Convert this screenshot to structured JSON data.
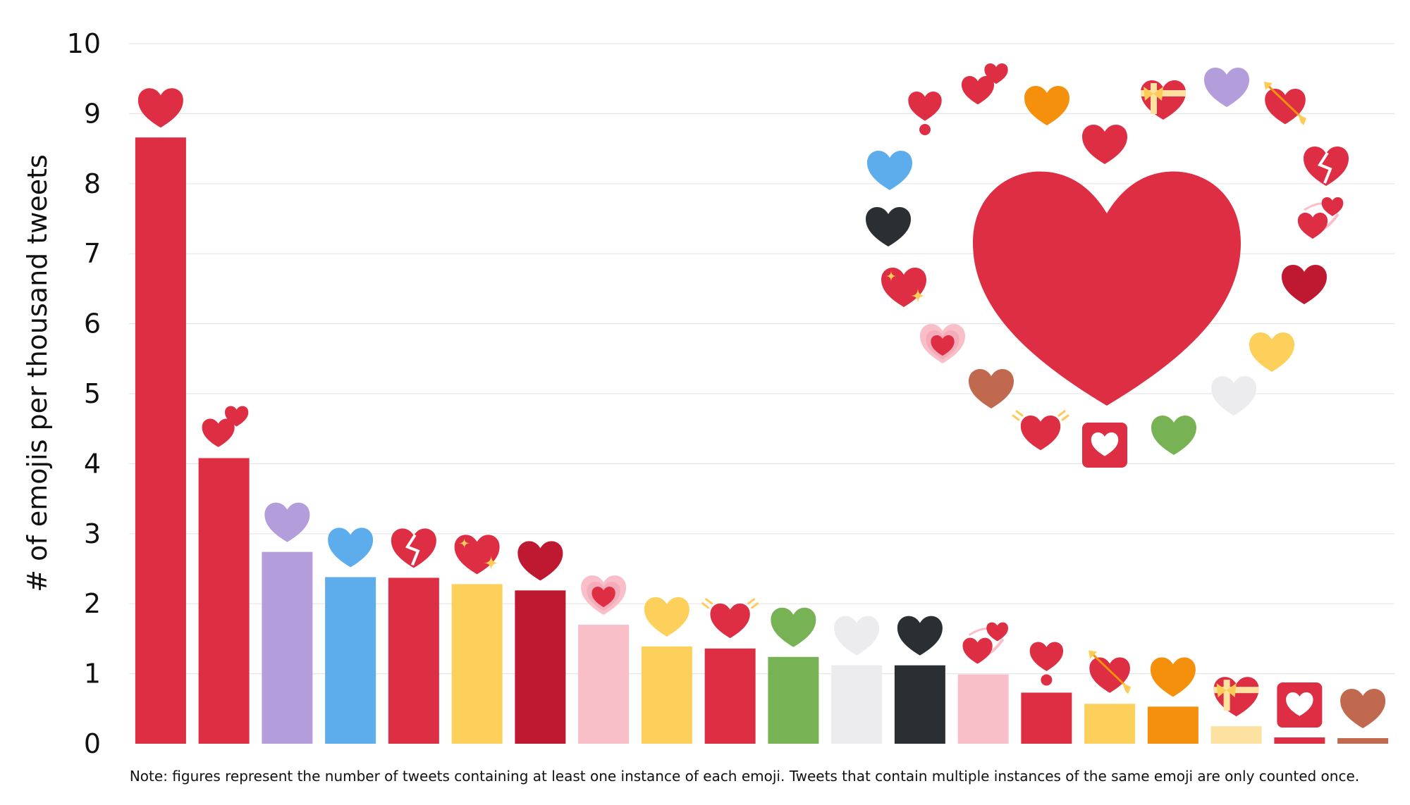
{
  "chart_data": {
    "type": "bar",
    "ylabel": "# of emojis per thousand tweets",
    "ylim": [
      0,
      10
    ],
    "yticks": [
      0,
      1,
      2,
      3,
      4,
      5,
      6,
      7,
      8,
      9,
      10
    ],
    "grid": true,
    "note": "Note: figures represent the number of tweets containing at least one instance of each emoji. Tweets that contain multiple instances of the same emoji are only counted once.",
    "bars": [
      {
        "emoji": "red-heart",
        "value": 8.66,
        "color": "#dd2e44"
      },
      {
        "emoji": "two-hearts",
        "value": 4.08,
        "color": "#dd2e44"
      },
      {
        "emoji": "purple-heart",
        "value": 2.74,
        "color": "#b49ddb"
      },
      {
        "emoji": "blue-heart",
        "value": 2.38,
        "color": "#5dadec"
      },
      {
        "emoji": "broken-heart",
        "value": 2.37,
        "color": "#dd2e44"
      },
      {
        "emoji": "sparkling-heart",
        "value": 2.28,
        "color": "#fdd05c"
      },
      {
        "emoji": "dark-red-heart",
        "value": 2.19,
        "color": "#be1931"
      },
      {
        "emoji": "growing-heart",
        "value": 1.7,
        "color": "#f8bfc9"
      },
      {
        "emoji": "yellow-heart",
        "value": 1.39,
        "color": "#fdd05c"
      },
      {
        "emoji": "beating-heart",
        "value": 1.36,
        "color": "#dd2e44"
      },
      {
        "emoji": "green-heart",
        "value": 1.24,
        "color": "#77b255"
      },
      {
        "emoji": "white-heart",
        "value": 1.12,
        "color": "#ececee"
      },
      {
        "emoji": "black-heart",
        "value": 1.12,
        "color": "#292f33"
      },
      {
        "emoji": "revolving-hearts",
        "value": 0.99,
        "color": "#f8bfc9"
      },
      {
        "emoji": "heart-exclamation",
        "value": 0.73,
        "color": "#dd2e44"
      },
      {
        "emoji": "heart-with-arrow",
        "value": 0.57,
        "color": "#fdd05c"
      },
      {
        "emoji": "orange-heart",
        "value": 0.53,
        "color": "#f4900c"
      },
      {
        "emoji": "heart-with-ribbon",
        "value": 0.25,
        "color": "#fde1a0"
      },
      {
        "emoji": "heart-decoration",
        "value": 0.09,
        "color": "#dd2e44"
      },
      {
        "emoji": "brown-heart",
        "value": 0.08,
        "color": "#c1694f"
      }
    ],
    "decoration": {
      "center_heart": "red-heart",
      "ring": [
        "two-hearts",
        "orange-heart",
        "heart-with-ribbon",
        "purple-heart",
        "heart-with-arrow",
        "broken-heart",
        "revolving-hearts",
        "dark-red-heart",
        "yellow-heart",
        "white-heart",
        "green-heart",
        "heart-decoration",
        "beating-heart",
        "brown-heart",
        "growing-heart",
        "sparkling-heart",
        "black-heart",
        "blue-heart",
        "heart-exclamation",
        "red-heart"
      ]
    }
  }
}
